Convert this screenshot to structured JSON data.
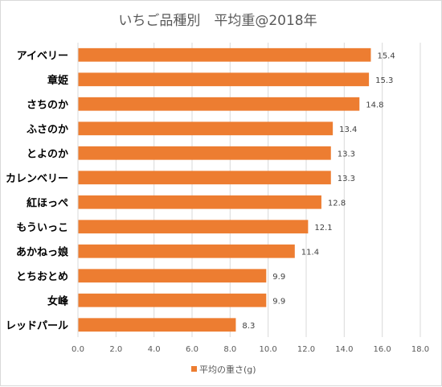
{
  "chart_data": {
    "type": "bar",
    "orientation": "horizontal",
    "title": "いちご品種別　平均重@2018年",
    "categories": [
      "アイベリー",
      "章姫",
      "さちのか",
      "ふさのか",
      "とよのか",
      "カレンベリー",
      "紅ほっぺ",
      "もういっこ",
      "あかねっ娘",
      "とちおとめ",
      "女峰",
      "レッドパール"
    ],
    "series": [
      {
        "name": "平均の重さ(g)",
        "values": [
          15.4,
          15.3,
          14.8,
          13.4,
          13.3,
          13.3,
          12.8,
          12.1,
          11.4,
          9.9,
          9.9,
          8.3
        ]
      }
    ],
    "value_labels": [
      "15.4",
      "15.3",
      "14.8",
      "13.4",
      "13.3",
      "13.3",
      "12.8",
      "12.1",
      "11.4",
      "9.9",
      "9.9",
      "8.3"
    ],
    "xlim": [
      0,
      18
    ],
    "x_ticks": [
      "0.0",
      "2.0",
      "4.0",
      "6.0",
      "8.0",
      "10.0",
      "12.0",
      "14.0",
      "16.0",
      "18.0"
    ],
    "xlabel": "",
    "ylabel": "",
    "grid": true,
    "legend_position": "bottom",
    "bar_color": "#ed7d31",
    "grid_color": "#d9d9d9"
  }
}
